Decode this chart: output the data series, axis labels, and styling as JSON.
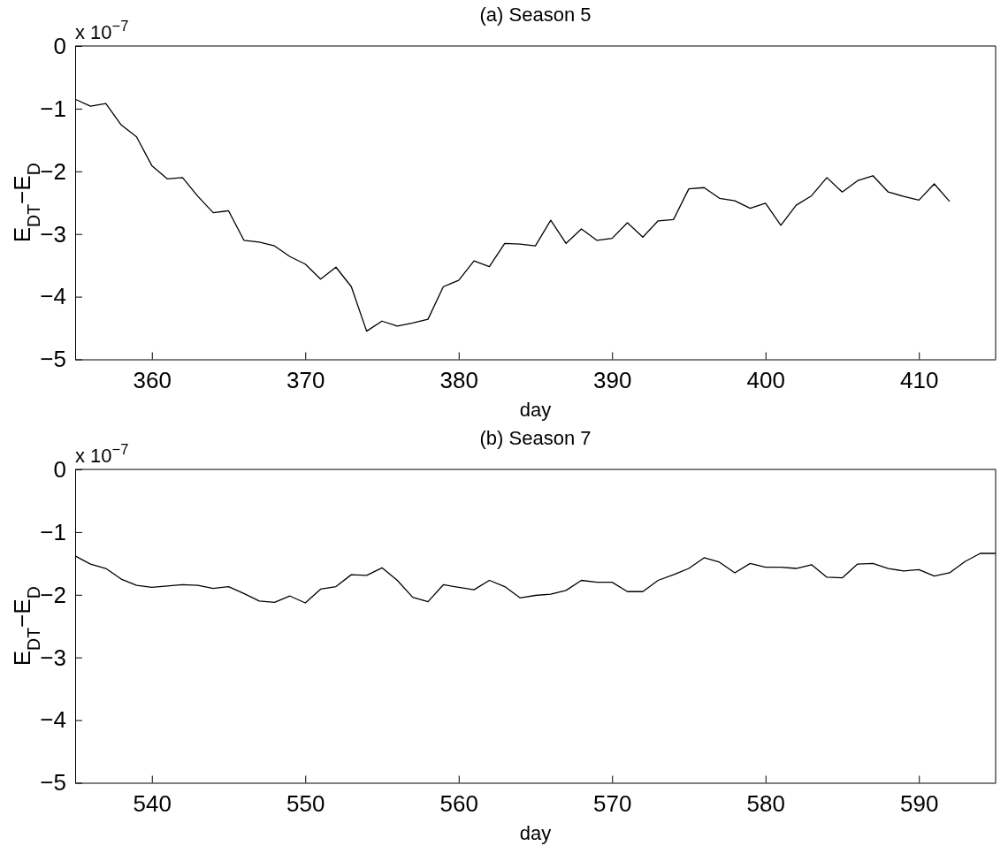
{
  "chart_data": [
    {
      "type": "line",
      "title": "(a) Season 5",
      "xlabel": "day",
      "ylabel": "E$_{DT}$−E$_{D}$",
      "annotations": [
        "x 10$^{−7}$"
      ],
      "x": [
        355,
        356,
        357,
        358,
        359,
        360,
        361,
        362,
        363,
        364,
        365,
        366,
        367,
        368,
        369,
        370,
        371,
        372,
        373,
        374,
        375,
        376,
        377,
        378,
        379,
        380,
        381,
        382,
        383,
        384,
        385,
        386,
        387,
        388,
        389,
        390,
        391,
        392,
        393,
        394,
        395,
        396,
        397,
        398,
        399,
        400,
        401,
        402,
        403,
        404,
        405,
        406,
        407,
        408,
        409,
        410,
        411,
        412
      ],
      "series": [
        {
          "color": "#000000",
          "values": [
            -0.85,
            -0.96,
            -0.92,
            -1.26,
            -1.45,
            -1.91,
            -2.12,
            -2.1,
            -2.4,
            -2.66,
            -2.63,
            -3.1,
            -3.13,
            -3.19,
            -3.36,
            -3.48,
            -3.72,
            -3.53,
            -3.84,
            -4.55,
            -4.39,
            -4.47,
            -4.42,
            -4.36,
            -3.84,
            -3.74,
            -3.43,
            -3.52,
            -3.15,
            -3.16,
            -3.19,
            -2.78,
            -3.15,
            -2.92,
            -3.1,
            -3.07,
            -2.82,
            -3.05,
            -2.79,
            -2.77,
            -2.28,
            -2.26,
            -2.43,
            -2.47,
            -2.59,
            -2.51,
            -2.86,
            -2.54,
            -2.39,
            -2.1,
            -2.33,
            -2.15,
            -2.07,
            -2.33,
            -2.4,
            -2.46,
            -2.2,
            -2.48
          ]
        }
      ],
      "xlim": [
        355,
        415
      ],
      "xticks": [
        360,
        370,
        380,
        390,
        400,
        410
      ],
      "ylim": [
        -5,
        0
      ],
      "yticks": [
        -5,
        -4,
        -3,
        -2,
        -1,
        0
      ],
      "grid": false
    },
    {
      "type": "line",
      "title": "(b) Season 7",
      "xlabel": "day",
      "ylabel": "E$_{DT}$−E$_{D}$",
      "annotations": [
        "x 10$^{−7}$"
      ],
      "x": [
        535,
        536,
        537,
        538,
        539,
        540,
        541,
        542,
        543,
        544,
        545,
        546,
        547,
        548,
        549,
        550,
        551,
        552,
        553,
        554,
        555,
        556,
        557,
        558,
        559,
        560,
        561,
        562,
        563,
        564,
        565,
        566,
        567,
        568,
        569,
        570,
        571,
        572,
        573,
        574,
        575,
        576,
        577,
        578,
        579,
        580,
        581,
        582,
        583,
        584,
        585,
        586,
        587,
        588,
        589,
        590,
        591,
        592,
        593,
        594,
        595
      ],
      "series": [
        {
          "color": "#000000",
          "values": [
            -1.38,
            -1.51,
            -1.58,
            -1.75,
            -1.85,
            -1.88,
            -1.86,
            -1.84,
            -1.85,
            -1.9,
            -1.87,
            -1.98,
            -2.1,
            -2.12,
            -2.02,
            -2.13,
            -1.91,
            -1.87,
            -1.68,
            -1.69,
            -1.57,
            -1.77,
            -2.04,
            -2.11,
            -1.84,
            -1.88,
            -1.92,
            -1.77,
            -1.87,
            -2.05,
            -2.01,
            -1.99,
            -1.93,
            -1.77,
            -1.8,
            -1.8,
            -1.95,
            -1.95,
            -1.77,
            -1.68,
            -1.58,
            -1.41,
            -1.48,
            -1.65,
            -1.5,
            -1.56,
            -1.56,
            -1.58,
            -1.52,
            -1.72,
            -1.73,
            -1.51,
            -1.5,
            -1.58,
            -1.62,
            -1.6,
            -1.7,
            -1.65,
            -1.47,
            -1.34,
            -1.34
          ]
        }
      ],
      "xlim": [
        535,
        595
      ],
      "xticks": [
        540,
        550,
        560,
        570,
        580,
        590
      ],
      "ylim": [
        -5,
        0
      ],
      "yticks": [
        -5,
        -4,
        -3,
        -2,
        -1,
        0
      ],
      "grid": false
    }
  ]
}
